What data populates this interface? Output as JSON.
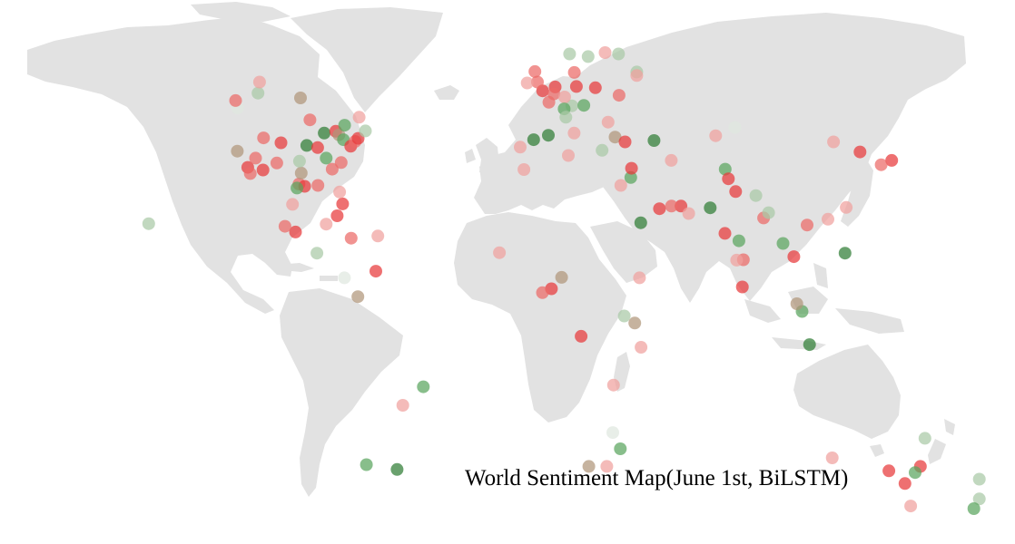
{
  "map": {
    "title": "World Sentiment Map(June 1st, BiLSTM)",
    "land_color": "#e2e2e2",
    "background_color": "#ffffff",
    "marker_opacity": 0.72,
    "marker_colors": {
      "strong_negative": "#e8393a",
      "negative": "#ec6a66",
      "weak_negative": "#f0a19e",
      "neutral": "#dfe8df",
      "weak_positive": "#a9c9a6",
      "positive": "#5aa55e",
      "strong_positive": "#2f7d35",
      "mixed": "#b0967a"
    },
    "markers": [
      {
        "lon": -122.4,
        "lat": 37.8,
        "sentiment": "mixed"
      },
      {
        "lon": -122.3,
        "lat": 47.6,
        "sentiment": "neutral"
      },
      {
        "lon": -118.2,
        "lat": 34.1,
        "sentiment": "strong_negative"
      },
      {
        "lon": -117.2,
        "lat": 32.7,
        "sentiment": "negative"
      },
      {
        "lon": -115.1,
        "lat": 36.2,
        "sentiment": "negative"
      },
      {
        "lon": -112.1,
        "lat": 33.5,
        "sentiment": "strong_negative"
      },
      {
        "lon": -111.9,
        "lat": 40.8,
        "sentiment": "negative"
      },
      {
        "lon": -104.9,
        "lat": 39.7,
        "sentiment": "strong_negative"
      },
      {
        "lon": -106.6,
        "lat": 35.1,
        "sentiment": "negative"
      },
      {
        "lon": -97.7,
        "lat": 30.3,
        "sentiment": "negative"
      },
      {
        "lon": -96.8,
        "lat": 32.8,
        "sentiment": "mixed"
      },
      {
        "lon": -95.4,
        "lat": 29.8,
        "sentiment": "strong_negative"
      },
      {
        "lon": -98.5,
        "lat": 29.4,
        "sentiment": "positive"
      },
      {
        "lon": -97.5,
        "lat": 35.5,
        "sentiment": "weak_positive"
      },
      {
        "lon": -94.6,
        "lat": 39.1,
        "sentiment": "strong_positive"
      },
      {
        "lon": -93.3,
        "lat": 44.9,
        "sentiment": "negative"
      },
      {
        "lon": -90.2,
        "lat": 38.6,
        "sentiment": "strong_negative"
      },
      {
        "lon": -90.1,
        "lat": 30.0,
        "sentiment": "negative"
      },
      {
        "lon": -87.6,
        "lat": 41.9,
        "sentiment": "strong_positive"
      },
      {
        "lon": -86.8,
        "lat": 36.2,
        "sentiment": "positive"
      },
      {
        "lon": -84.4,
        "lat": 33.7,
        "sentiment": "negative"
      },
      {
        "lon": -83.0,
        "lat": 42.3,
        "sentiment": "strong_negative"
      },
      {
        "lon": -81.7,
        "lat": 41.5,
        "sentiment": "mixed"
      },
      {
        "lon": -80.8,
        "lat": 35.2,
        "sentiment": "negative"
      },
      {
        "lon": -80.2,
        "lat": 25.8,
        "sentiment": "strong_negative"
      },
      {
        "lon": -81.4,
        "lat": 28.5,
        "sentiment": "weak_negative"
      },
      {
        "lon": -79.9,
        "lat": 40.4,
        "sentiment": "positive"
      },
      {
        "lon": -77.0,
        "lat": 38.9,
        "sentiment": "strong_negative"
      },
      {
        "lon": -75.2,
        "lat": 40.0,
        "sentiment": "negative"
      },
      {
        "lon": -74.0,
        "lat": 40.7,
        "sentiment": "strong_negative"
      },
      {
        "lon": -71.1,
        "lat": 42.4,
        "sentiment": "weak_positive"
      },
      {
        "lon": -79.4,
        "lat": 43.7,
        "sentiment": "positive"
      },
      {
        "lon": -73.6,
        "lat": 45.5,
        "sentiment": "weak_negative"
      },
      {
        "lon": -114.1,
        "lat": 51.0,
        "sentiment": "weak_positive"
      },
      {
        "lon": -113.5,
        "lat": 53.5,
        "sentiment": "weak_negative"
      },
      {
        "lon": -97.1,
        "lat": 49.9,
        "sentiment": "mixed"
      },
      {
        "lon": -123.1,
        "lat": 49.3,
        "sentiment": "negative"
      },
      {
        "lon": -99.1,
        "lat": 19.4,
        "sentiment": "strong_negative"
      },
      {
        "lon": -103.3,
        "lat": 20.7,
        "sentiment": "negative"
      },
      {
        "lon": -100.3,
        "lat": 25.7,
        "sentiment": "weak_negative"
      },
      {
        "lon": -86.8,
        "lat": 21.2,
        "sentiment": "weak_negative"
      },
      {
        "lon": -90.5,
        "lat": 14.6,
        "sentiment": "weak_positive"
      },
      {
        "lon": -82.4,
        "lat": 23.1,
        "sentiment": "strong_negative"
      },
      {
        "lon": -76.8,
        "lat": 18.0,
        "sentiment": "negative"
      },
      {
        "lon": -66.1,
        "lat": 18.5,
        "sentiment": "weak_negative"
      },
      {
        "lon": -66.9,
        "lat": 10.5,
        "sentiment": "strong_negative"
      },
      {
        "lon": -74.1,
        "lat": 4.7,
        "sentiment": "mixed"
      },
      {
        "lon": -79.5,
        "lat": 9.0,
        "sentiment": "neutral"
      },
      {
        "lon": -157.9,
        "lat": 21.3,
        "sentiment": "weak_positive"
      },
      {
        "lon": -47.9,
        "lat": -15.8,
        "sentiment": "positive"
      },
      {
        "lon": -58.4,
        "lat": -34.6,
        "sentiment": "strong_positive"
      },
      {
        "lon": -70.7,
        "lat": -33.5,
        "sentiment": "positive"
      },
      {
        "lon": -56.1,
        "lat": -20.0,
        "sentiment": "weak_negative"
      },
      {
        "lon": -0.1,
        "lat": 51.5,
        "sentiment": "strong_negative"
      },
      {
        "lon": -2.2,
        "lat": 53.5,
        "sentiment": "negative"
      },
      {
        "lon": -3.2,
        "lat": 55.9,
        "sentiment": "negative"
      },
      {
        "lon": -6.3,
        "lat": 53.3,
        "sentiment": "weak_negative"
      },
      {
        "lon": 2.4,
        "lat": 48.9,
        "sentiment": "negative"
      },
      {
        "lon": -3.7,
        "lat": 40.4,
        "sentiment": "strong_positive"
      },
      {
        "lon": 2.2,
        "lat": 41.4,
        "sentiment": "strong_positive"
      },
      {
        "lon": -9.1,
        "lat": 38.7,
        "sentiment": "weak_negative"
      },
      {
        "lon": 4.9,
        "lat": 52.4,
        "sentiment": "strong_negative"
      },
      {
        "lon": 4.4,
        "lat": 50.8,
        "sentiment": "negative"
      },
      {
        "lon": 13.4,
        "lat": 52.5,
        "sentiment": "strong_negative"
      },
      {
        "lon": 11.6,
        "lat": 48.1,
        "sentiment": "weak_positive"
      },
      {
        "lon": 8.7,
        "lat": 50.1,
        "sentiment": "weak_negative"
      },
      {
        "lon": 8.5,
        "lat": 47.4,
        "sentiment": "positive"
      },
      {
        "lon": 12.5,
        "lat": 41.9,
        "sentiment": "weak_negative"
      },
      {
        "lon": 9.2,
        "lat": 45.5,
        "sentiment": "weak_positive"
      },
      {
        "lon": 16.4,
        "lat": 48.2,
        "sentiment": "positive"
      },
      {
        "lon": 21.0,
        "lat": 52.2,
        "sentiment": "strong_negative"
      },
      {
        "lon": 18.1,
        "lat": 59.3,
        "sentiment": "weak_positive"
      },
      {
        "lon": 10.7,
        "lat": 59.9,
        "sentiment": "weak_positive"
      },
      {
        "lon": 24.9,
        "lat": 60.2,
        "sentiment": "weak_negative"
      },
      {
        "lon": 12.6,
        "lat": 55.7,
        "sentiment": "negative"
      },
      {
        "lon": 30.5,
        "lat": 50.5,
        "sentiment": "negative"
      },
      {
        "lon": 37.6,
        "lat": 55.8,
        "sentiment": "weak_positive"
      },
      {
        "lon": 30.3,
        "lat": 59.9,
        "sentiment": "weak_positive"
      },
      {
        "lon": 26.1,
        "lat": 44.4,
        "sentiment": "weak_negative"
      },
      {
        "lon": 23.7,
        "lat": 37.98,
        "sentiment": "weak_positive"
      },
      {
        "lon": 28.9,
        "lat": 41.0,
        "sentiment": "mixed"
      },
      {
        "lon": 32.9,
        "lat": 39.9,
        "sentiment": "strong_negative"
      },
      {
        "lon": 44.5,
        "lat": 40.2,
        "sentiment": "strong_positive"
      },
      {
        "lon": 35.2,
        "lat": 31.8,
        "sentiment": "positive"
      },
      {
        "lon": 31.2,
        "lat": 30.0,
        "sentiment": "weak_negative"
      },
      {
        "lon": 35.5,
        "lat": 33.9,
        "sentiment": "strong_negative"
      },
      {
        "lon": 46.7,
        "lat": 24.7,
        "sentiment": "strong_negative"
      },
      {
        "lon": 55.3,
        "lat": 25.3,
        "sentiment": "strong_negative"
      },
      {
        "lon": 51.5,
        "lat": 25.3,
        "sentiment": "negative"
      },
      {
        "lon": 51.4,
        "lat": 35.7,
        "sentiment": "weak_negative"
      },
      {
        "lon": 58.4,
        "lat": 23.6,
        "sentiment": "weak_negative"
      },
      {
        "lon": 39.2,
        "lat": 21.5,
        "sentiment": "strong_positive"
      },
      {
        "lon": 10.2,
        "lat": 36.8,
        "sentiment": "weak_negative"
      },
      {
        "lon": -7.6,
        "lat": 33.6,
        "sentiment": "weak_negative"
      },
      {
        "lon": 3.4,
        "lat": 6.5,
        "sentiment": "strong_negative"
      },
      {
        "lon": 7.5,
        "lat": 9.1,
        "sentiment": "mixed"
      },
      {
        "lon": -0.2,
        "lat": 5.6,
        "sentiment": "negative"
      },
      {
        "lon": -17.4,
        "lat": 14.7,
        "sentiment": "weak_negative"
      },
      {
        "lon": 15.3,
        "lat": -4.3,
        "sentiment": "strong_negative"
      },
      {
        "lon": 36.8,
        "lat": -1.3,
        "sentiment": "mixed"
      },
      {
        "lon": 32.6,
        "lat": 0.3,
        "sentiment": "weak_positive"
      },
      {
        "lon": 38.7,
        "lat": 9.0,
        "sentiment": "weak_negative"
      },
      {
        "lon": 39.3,
        "lat": -6.8,
        "sentiment": "weak_negative"
      },
      {
        "lon": 28.3,
        "lat": -15.4,
        "sentiment": "weak_negative"
      },
      {
        "lon": 28.0,
        "lat": -26.2,
        "sentiment": "neutral"
      },
      {
        "lon": 31.0,
        "lat": -29.9,
        "sentiment": "positive"
      },
      {
        "lon": 18.4,
        "lat": -33.9,
        "sentiment": "mixed"
      },
      {
        "lon": 25.6,
        "lat": -33.9,
        "sentiment": "weak_negative"
      },
      {
        "lon": 72.9,
        "lat": 19.1,
        "sentiment": "strong_negative"
      },
      {
        "lon": 77.2,
        "lat": 28.6,
        "sentiment": "strong_negative"
      },
      {
        "lon": 88.4,
        "lat": 22.6,
        "sentiment": "negative"
      },
      {
        "lon": 80.3,
        "lat": 13.1,
        "sentiment": "negative"
      },
      {
        "lon": 77.6,
        "lat": 13.0,
        "sentiment": "weak_negative"
      },
      {
        "lon": 78.5,
        "lat": 17.4,
        "sentiment": "positive"
      },
      {
        "lon": 73.0,
        "lat": 33.7,
        "sentiment": "positive"
      },
      {
        "lon": 74.3,
        "lat": 31.5,
        "sentiment": "strong_negative"
      },
      {
        "lon": 67.0,
        "lat": 24.9,
        "sentiment": "strong_positive"
      },
      {
        "lon": 85.3,
        "lat": 27.7,
        "sentiment": "weak_positive"
      },
      {
        "lon": 90.4,
        "lat": 23.8,
        "sentiment": "weak_positive"
      },
      {
        "lon": 79.9,
        "lat": 6.9,
        "sentiment": "strong_negative"
      },
      {
        "lon": 100.5,
        "lat": 13.8,
        "sentiment": "strong_negative"
      },
      {
        "lon": 96.2,
        "lat": 16.8,
        "sentiment": "positive"
      },
      {
        "lon": 103.8,
        "lat": 1.35,
        "sentiment": "positive"
      },
      {
        "lon": 101.7,
        "lat": 3.1,
        "sentiment": "mixed"
      },
      {
        "lon": 106.8,
        "lat": -6.2,
        "sentiment": "strong_positive"
      },
      {
        "lon": 121.0,
        "lat": 14.6,
        "sentiment": "strong_positive"
      },
      {
        "lon": 105.8,
        "lat": 21.0,
        "sentiment": "negative"
      },
      {
        "lon": 114.2,
        "lat": 22.3,
        "sentiment": "weak_negative"
      },
      {
        "lon": 121.5,
        "lat": 25.0,
        "sentiment": "weak_negative"
      },
      {
        "lon": 116.4,
        "lat": 39.9,
        "sentiment": "weak_negative"
      },
      {
        "lon": 127.0,
        "lat": 37.6,
        "sentiment": "strong_negative"
      },
      {
        "lon": 139.7,
        "lat": 35.7,
        "sentiment": "strong_negative"
      },
      {
        "lon": 135.5,
        "lat": 34.7,
        "sentiment": "negative"
      },
      {
        "lon": 37.6,
        "lat": 55.0,
        "sentiment": "weak_negative"
      },
      {
        "lon": 76.9,
        "lat": 43.2,
        "sentiment": "neutral"
      },
      {
        "lon": 69.2,
        "lat": 41.3,
        "sentiment": "weak_negative"
      },
      {
        "lon": 151.2,
        "lat": -33.9,
        "sentiment": "strong_negative"
      },
      {
        "lon": 145.0,
        "lat": -37.8,
        "sentiment": "strong_negative"
      },
      {
        "lon": 153.0,
        "lat": -27.5,
        "sentiment": "weak_positive"
      },
      {
        "lon": 138.6,
        "lat": -34.9,
        "sentiment": "strong_negative"
      },
      {
        "lon": 115.9,
        "lat": -31.95,
        "sentiment": "weak_negative"
      },
      {
        "lon": 149.1,
        "lat": -35.3,
        "sentiment": "positive"
      },
      {
        "lon": 147.3,
        "lat": -42.9,
        "sentiment": "weak_negative"
      },
      {
        "lon": 174.8,
        "lat": -36.8,
        "sentiment": "weak_positive"
      },
      {
        "lon": 174.8,
        "lat": -41.3,
        "sentiment": "weak_positive"
      },
      {
        "lon": 172.6,
        "lat": -43.5,
        "sentiment": "positive"
      }
    ]
  }
}
